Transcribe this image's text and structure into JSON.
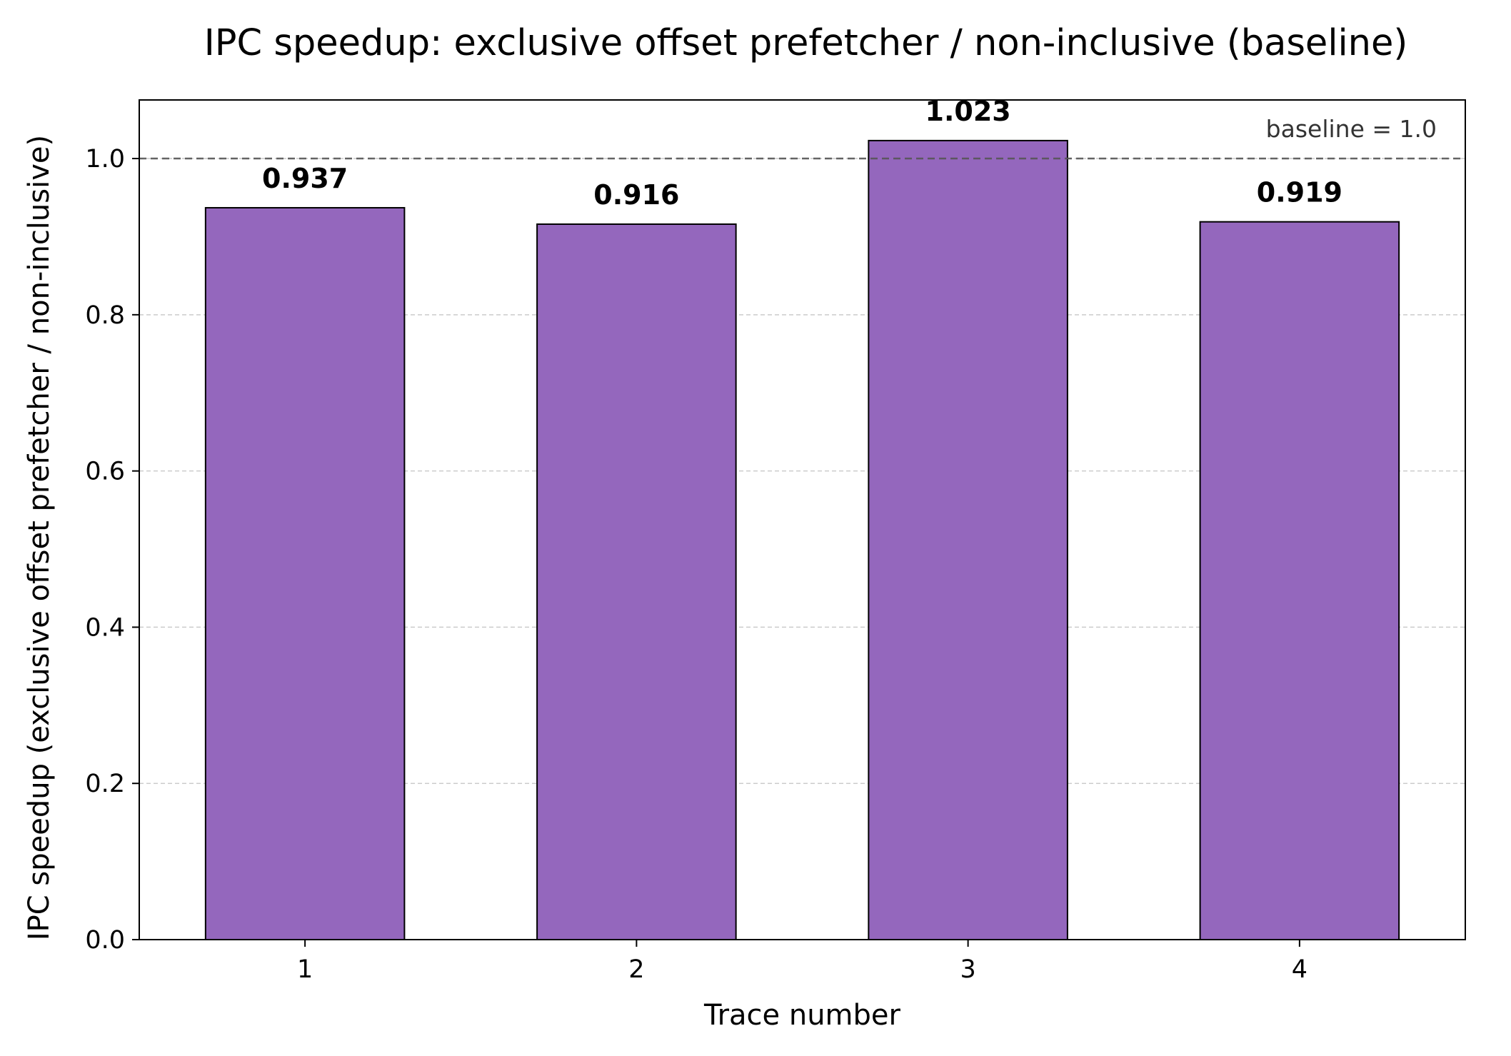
{
  "chart_data": {
    "type": "bar",
    "title": "IPC speedup: exclusive offset prefetcher / non-inclusive (baseline)",
    "xlabel": "Trace number",
    "ylabel": "IPC speedup (exclusive offset prefetcher / non-inclusive)",
    "categories": [
      "1",
      "2",
      "3",
      "4"
    ],
    "values": [
      0.937,
      0.916,
      1.023,
      0.919
    ],
    "value_labels": [
      "0.937",
      "0.916",
      "1.023",
      "0.919"
    ],
    "ylim": [
      0.0,
      1.075
    ],
    "yticks": [
      0.0,
      0.2,
      0.4,
      0.6,
      0.8,
      1.0
    ],
    "ytick_labels": [
      "0.0",
      "0.2",
      "0.4",
      "0.6",
      "0.8",
      "1.0"
    ],
    "baseline": {
      "value": 1.0,
      "label": "baseline = 1.0"
    },
    "grid": "y-dashed",
    "bar_color": "#9467bd",
    "bar_edge_color": "#000000"
  }
}
